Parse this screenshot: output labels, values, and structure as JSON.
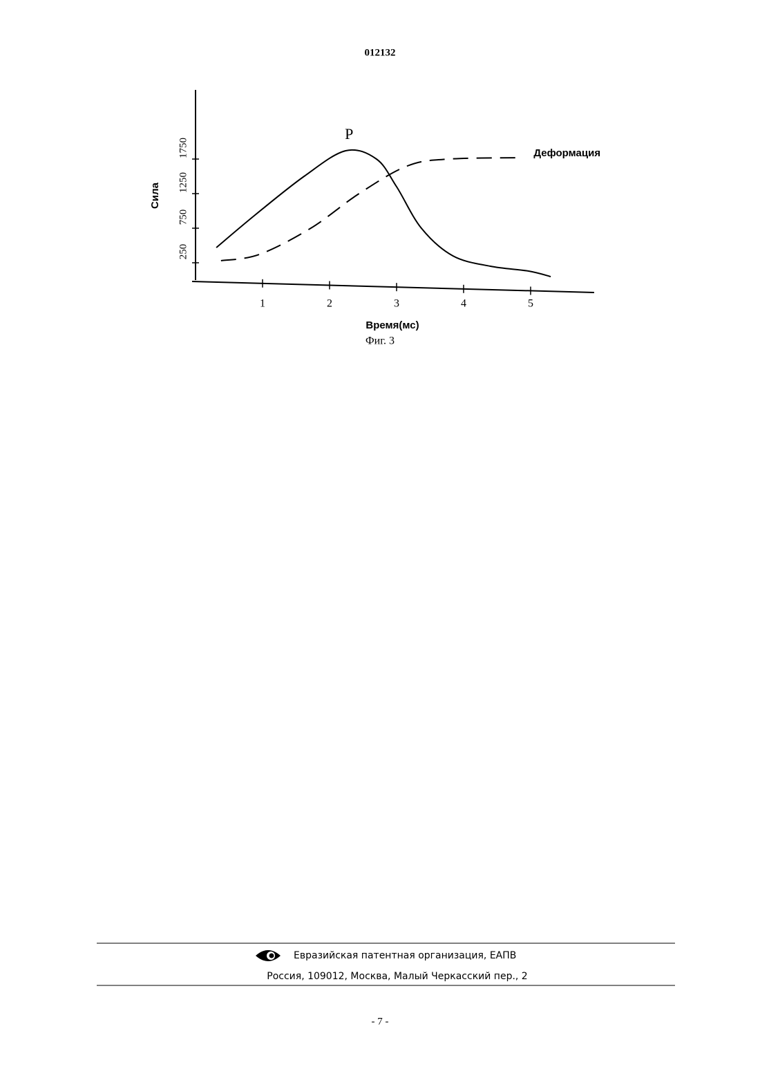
{
  "header": {
    "number": "012132"
  },
  "chart_data": {
    "type": "line",
    "ylabel": "Сила",
    "xlabel": "Время(мс)",
    "xlim": [
      0,
      6
    ],
    "xticks": [
      1,
      2,
      3,
      4,
      5
    ],
    "ylim": [
      0,
      2750
    ],
    "yticks": [
      250,
      750,
      1250,
      1750
    ],
    "series": [
      {
        "name": "P",
        "color": "#000000",
        "style": "solid",
        "x": [
          0.31,
          0.9,
          1.62,
          2.24,
          2.7,
          3.0,
          3.37,
          3.84,
          4.4,
          4.97,
          5.3
        ],
        "values": [
          470,
          950,
          1500,
          1870,
          1750,
          1350,
          750,
          350,
          200,
          130,
          50
        ]
      },
      {
        "name": "Деформация",
        "color": "#000000",
        "style": "dashed",
        "x": [
          0.38,
          0.95,
          1.72,
          2.44,
          3.16,
          3.78,
          4.87
        ],
        "values": [
          280,
          370,
          750,
          1250,
          1650,
          1750,
          1770
        ]
      }
    ]
  },
  "caption": "Фиг. 3",
  "footer": {
    "organization": "Евразийская патентная организация, ЕАПВ",
    "address": "Россия, 109012, Москва, Малый Черкасский пер., 2"
  },
  "page_number": "- 7 -"
}
